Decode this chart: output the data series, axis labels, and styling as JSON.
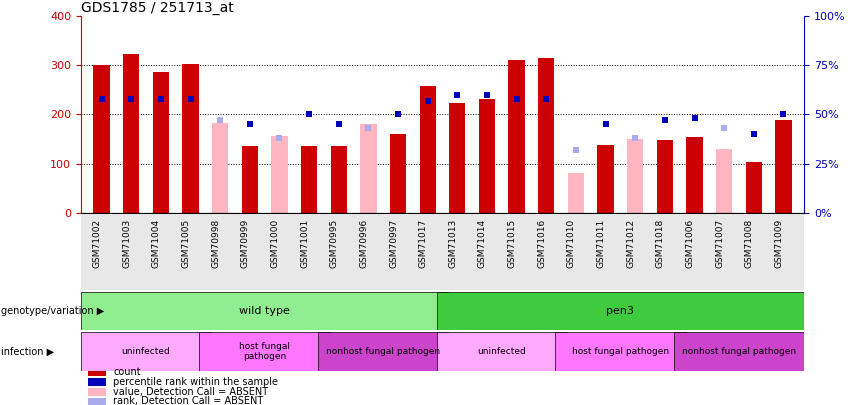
{
  "title": "GDS1785 / 251713_at",
  "samples": [
    "GSM71002",
    "GSM71003",
    "GSM71004",
    "GSM71005",
    "GSM70998",
    "GSM70999",
    "GSM71000",
    "GSM71001",
    "GSM70995",
    "GSM70996",
    "GSM70997",
    "GSM71017",
    "GSM71013",
    "GSM71014",
    "GSM71015",
    "GSM71016",
    "GSM71010",
    "GSM71011",
    "GSM71012",
    "GSM71018",
    "GSM71006",
    "GSM71007",
    "GSM71008",
    "GSM71009"
  ],
  "count_present": [
    300,
    323,
    286,
    302,
    null,
    135,
    null,
    136,
    135,
    null,
    160,
    258,
    224,
    232,
    310,
    315,
    null,
    138,
    null,
    148,
    154,
    null,
    103,
    189
  ],
  "count_absent": [
    null,
    null,
    null,
    null,
    183,
    null,
    157,
    null,
    null,
    180,
    null,
    null,
    null,
    null,
    null,
    null,
    80,
    null,
    150,
    null,
    null,
    130,
    null,
    null
  ],
  "percentile_present": [
    58,
    58,
    58,
    58,
    null,
    45,
    null,
    50,
    45,
    null,
    50,
    57,
    60,
    60,
    58,
    58,
    null,
    45,
    null,
    47,
    48,
    null,
    40,
    50
  ],
  "rank_absent": [
    null,
    null,
    null,
    null,
    47,
    null,
    38,
    null,
    null,
    43,
    null,
    null,
    null,
    null,
    null,
    null,
    32,
    null,
    38,
    null,
    null,
    43,
    null,
    null
  ],
  "genotype_groups": [
    {
      "label": "wild type",
      "start": 0,
      "end": 12,
      "color": "#90EE90"
    },
    {
      "label": "pen3",
      "start": 12,
      "end": 24,
      "color": "#3ECC3E"
    }
  ],
  "infection_groups": [
    {
      "label": "uninfected",
      "start": 0,
      "end": 4,
      "color": "#FFAAFF"
    },
    {
      "label": "host fungal\npathogen",
      "start": 4,
      "end": 8,
      "color": "#FF77FF"
    },
    {
      "label": "nonhost fungal pathogen",
      "start": 8,
      "end": 12,
      "color": "#CC44CC"
    },
    {
      "label": "uninfected",
      "start": 12,
      "end": 16,
      "color": "#FFAAFF"
    },
    {
      "label": "host fungal pathogen",
      "start": 16,
      "end": 20,
      "color": "#FF77FF"
    },
    {
      "label": "nonhost fungal pathogen",
      "start": 20,
      "end": 24,
      "color": "#CC44CC"
    }
  ],
  "ylim_left": [
    0,
    400
  ],
  "ylim_right": [
    0,
    100
  ],
  "yticks_left": [
    0,
    100,
    200,
    300,
    400
  ],
  "yticks_right": [
    0,
    25,
    50,
    75,
    100
  ],
  "count_color_present": "#CC0000",
  "count_color_absent": "#FFB6C1",
  "percentile_color_present": "#0000BB",
  "rank_color_absent": "#AAAAEE",
  "marker_size": 5,
  "left_label_color": "#CC0000",
  "right_label_color": "#0000BB",
  "legend_items": [
    {
      "color": "#CC0000",
      "label": "count"
    },
    {
      "color": "#0000BB",
      "label": "percentile rank within the sample"
    },
    {
      "color": "#FFB6C1",
      "label": "value, Detection Call = ABSENT"
    },
    {
      "color": "#AAAAEE",
      "label": "rank, Detection Call = ABSENT"
    }
  ]
}
